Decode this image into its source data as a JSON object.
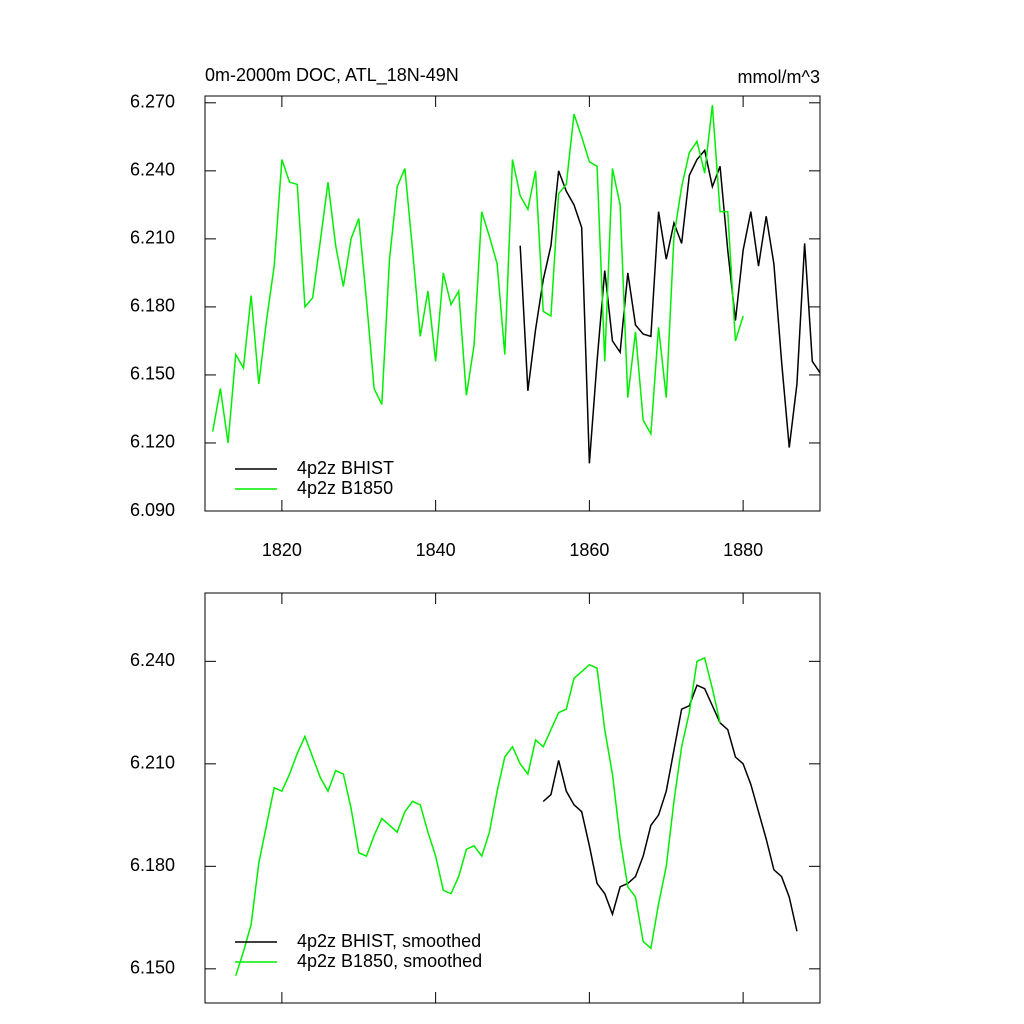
{
  "chart_data": [
    {
      "type": "line",
      "title": "0m-2000m DOC, ATL_18N-49N",
      "units": "mmol/m^3",
      "xlim": [
        1810,
        1890
      ],
      "xticks": [
        1820,
        1840,
        1860,
        1880
      ],
      "xtick_labels": true,
      "ylim": [
        6.09,
        6.273
      ],
      "yticks": [
        {
          "value": 6.09,
          "label": "6.090"
        },
        {
          "value": 6.12,
          "label": "6.120"
        },
        {
          "value": 6.15,
          "label": "6.150"
        },
        {
          "value": 6.18,
          "label": "6.180"
        },
        {
          "value": 6.21,
          "label": "6.210"
        },
        {
          "value": 6.24,
          "label": "6.240"
        },
        {
          "value": 6.27,
          "label": "6.270"
        }
      ],
      "legend": "lower left",
      "series": [
        {
          "name": "4p2z BHIST",
          "color": "#000000",
          "x": [
            1851,
            1852,
            1853,
            1854,
            1855,
            1856,
            1857,
            1858,
            1859,
            1860,
            1861,
            1862,
            1863,
            1864,
            1865,
            1866,
            1867,
            1868,
            1869,
            1870,
            1871,
            1872,
            1873,
            1874,
            1875,
            1876,
            1877,
            1878,
            1879,
            1880,
            1881,
            1882,
            1883,
            1884,
            1885,
            1886,
            1887,
            1888,
            1889,
            1890
          ],
          "values": [
            6.207,
            6.143,
            6.17,
            6.192,
            6.207,
            6.24,
            6.231,
            6.225,
            6.215,
            6.111,
            6.156,
            6.196,
            6.165,
            6.16,
            6.195,
            6.172,
            6.168,
            6.167,
            6.222,
            6.201,
            6.217,
            6.208,
            6.238,
            6.245,
            6.249,
            6.233,
            6.242,
            6.205,
            6.174,
            6.205,
            6.222,
            6.198,
            6.22,
            6.199,
            6.156,
            6.118,
            6.146,
            6.208,
            6.156,
            6.151
          ]
        },
        {
          "name": "4p2z B1850",
          "color": "#00ee00",
          "x": [
            1811,
            1812,
            1813,
            1814,
            1815,
            1816,
            1817,
            1818,
            1819,
            1820,
            1821,
            1822,
            1823,
            1824,
            1825,
            1826,
            1827,
            1828,
            1829,
            1830,
            1831,
            1832,
            1833,
            1834,
            1835,
            1836,
            1837,
            1838,
            1839,
            1840,
            1841,
            1842,
            1843,
            1844,
            1845,
            1846,
            1847,
            1848,
            1849,
            1850,
            1851,
            1852,
            1853,
            1854,
            1855,
            1856,
            1857,
            1858,
            1859,
            1860,
            1861,
            1862,
            1863,
            1864,
            1865,
            1866,
            1867,
            1868,
            1869,
            1870,
            1871,
            1872,
            1873,
            1874,
            1875,
            1876,
            1877,
            1878,
            1879,
            1880
          ],
          "values": [
            6.125,
            6.144,
            6.12,
            6.159,
            6.153,
            6.185,
            6.146,
            6.174,
            6.198,
            6.245,
            6.235,
            6.234,
            6.18,
            6.184,
            6.209,
            6.235,
            6.207,
            6.189,
            6.21,
            6.219,
            6.183,
            6.144,
            6.137,
            6.201,
            6.233,
            6.241,
            6.205,
            6.167,
            6.187,
            6.156,
            6.195,
            6.181,
            6.187,
            6.141,
            6.163,
            6.222,
            6.211,
            6.199,
            6.159,
            6.245,
            6.229,
            6.223,
            6.24,
            6.178,
            6.176,
            6.23,
            6.234,
            6.265,
            6.255,
            6.244,
            6.242,
            6.156,
            6.241,
            6.225,
            6.14,
            6.169,
            6.13,
            6.124,
            6.171,
            6.14,
            6.211,
            6.233,
            6.248,
            6.253,
            6.239,
            6.269,
            6.222,
            6.222,
            6.165,
            6.176
          ]
        }
      ]
    },
    {
      "type": "line",
      "xlim": [
        1810,
        1890
      ],
      "xticks": [
        1820,
        1840,
        1860,
        1880
      ],
      "xtick_labels": false,
      "ylim": [
        6.14,
        6.26
      ],
      "yticks": [
        {
          "value": 6.15,
          "label": "6.150"
        },
        {
          "value": 6.18,
          "label": "6.180"
        },
        {
          "value": 6.21,
          "label": "6.210"
        },
        {
          "value": 6.24,
          "label": "6.240"
        }
      ],
      "legend": "lower left",
      "series": [
        {
          "name": "4p2z BHIST, smoothed",
          "color": "#000000",
          "x": [
            1854,
            1855,
            1856,
            1857,
            1858,
            1859,
            1860,
            1861,
            1862,
            1863,
            1864,
            1865,
            1866,
            1867,
            1868,
            1869,
            1870,
            1871,
            1872,
            1873,
            1874,
            1875,
            1876,
            1877,
            1878,
            1879,
            1880,
            1881,
            1882,
            1883,
            1884,
            1885,
            1886,
            1887
          ],
          "values": [
            6.199,
            6.201,
            6.211,
            6.202,
            6.198,
            6.196,
            6.186,
            6.175,
            6.172,
            6.166,
            6.174,
            6.175,
            6.177,
            6.183,
            6.192,
            6.195,
            6.202,
            6.214,
            6.226,
            6.227,
            6.233,
            6.232,
            6.227,
            6.222,
            6.22,
            6.212,
            6.21,
            6.204,
            6.196,
            6.188,
            6.179,
            6.177,
            6.171,
            6.161
          ]
        },
        {
          "name": "4p2z B1850, smoothed",
          "color": "#00ee00",
          "x": [
            1814,
            1815,
            1816,
            1817,
            1818,
            1819,
            1820,
            1821,
            1822,
            1823,
            1824,
            1825,
            1826,
            1827,
            1828,
            1829,
            1830,
            1831,
            1832,
            1833,
            1834,
            1835,
            1836,
            1837,
            1838,
            1839,
            1840,
            1841,
            1842,
            1843,
            1844,
            1845,
            1846,
            1847,
            1848,
            1849,
            1850,
            1851,
            1852,
            1853,
            1854,
            1855,
            1856,
            1857,
            1858,
            1859,
            1860,
            1861,
            1862,
            1863,
            1864,
            1865,
            1866,
            1867,
            1868,
            1869,
            1870,
            1871,
            1872,
            1873,
            1874,
            1875,
            1876,
            1877
          ],
          "values": [
            6.148,
            6.155,
            6.163,
            6.181,
            6.192,
            6.203,
            6.202,
            6.207,
            6.213,
            6.218,
            6.212,
            6.206,
            6.202,
            6.208,
            6.207,
            6.197,
            6.184,
            6.183,
            6.189,
            6.194,
            6.192,
            6.19,
            6.196,
            6.199,
            6.198,
            6.19,
            6.183,
            6.173,
            6.172,
            6.177,
            6.185,
            6.186,
            6.183,
            6.19,
            6.202,
            6.212,
            6.215,
            6.21,
            6.207,
            6.217,
            6.215,
            6.22,
            6.225,
            6.226,
            6.235,
            6.237,
            6.239,
            6.238,
            6.22,
            6.207,
            6.188,
            6.174,
            6.171,
            6.158,
            6.156,
            6.169,
            6.18,
            6.199,
            6.215,
            6.225,
            6.24,
            6.241,
            6.232,
            6.222
          ]
        }
      ]
    }
  ]
}
